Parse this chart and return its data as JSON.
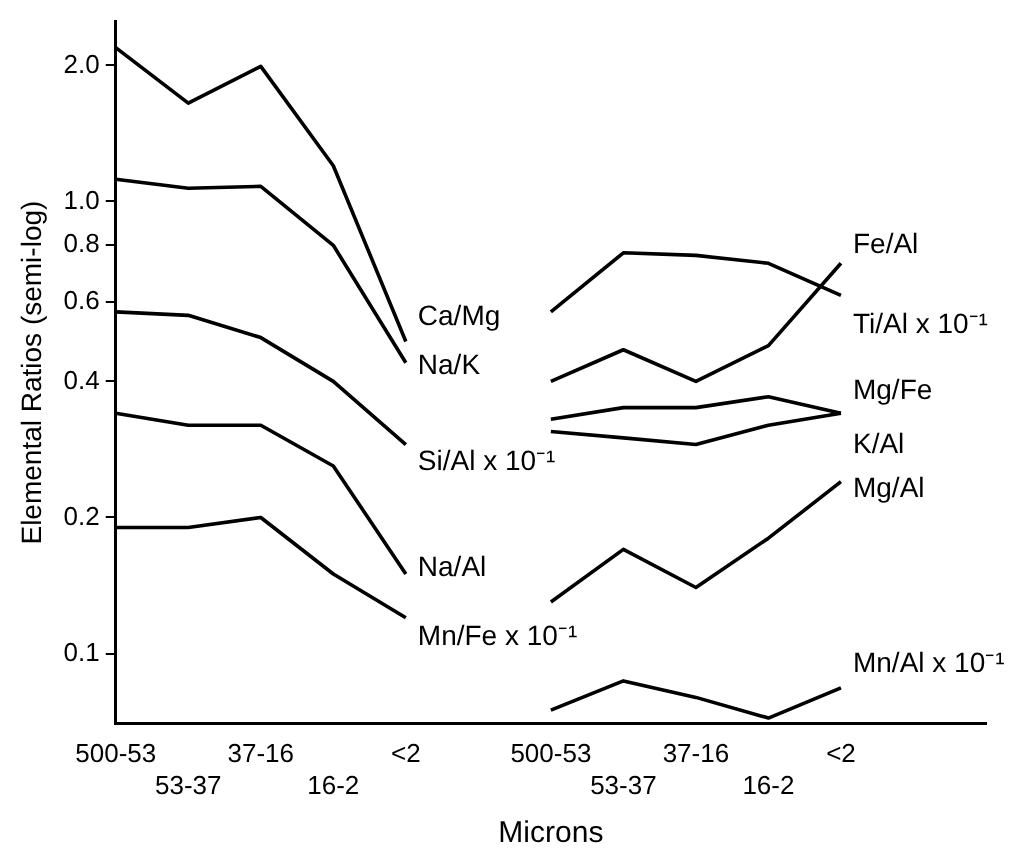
{
  "chart_data": {
    "type": "line",
    "xlabel": "Microns",
    "ylabel": "Elemental Ratios (semi-log)",
    "categories": [
      "500-53",
      "53-37",
      "37-16",
      "16-2",
      "<2",
      null,
      "500-53",
      "53-37",
      "37-16",
      "16-2",
      "<2",
      null,
      null
    ],
    "log": "y",
    "ylim": [
      0.07,
      2.5
    ],
    "yticks": [
      0.1,
      0.2,
      0.4,
      0.6,
      0.8,
      {
        "value": 1,
        "label": "1.0"
      },
      {
        "value": 2,
        "label": "2.0"
      }
    ],
    "grid": false,
    "legend": false,
    "marker": "none",
    "line_style": "solid",
    "series": [
      {
        "name": "Ca/Mg",
        "color": "#000000",
        "values": [
          2.19,
          1.65,
          1.99,
          1.2,
          0.49,
          null,
          null,
          null,
          null,
          null,
          null,
          null,
          null
        ]
      },
      {
        "name": "Na/K",
        "color": "#000000",
        "values": [
          1.12,
          1.07,
          1.08,
          0.8,
          0.44,
          null,
          null,
          null,
          null,
          null,
          null,
          null,
          null
        ]
      },
      {
        "name": "Si/Al x 10⁻¹",
        "color": "#000000",
        "values": [
          0.57,
          0.56,
          0.5,
          0.4,
          0.29,
          null,
          null,
          null,
          null,
          null,
          null,
          null,
          null
        ]
      },
      {
        "name": "Na/Al",
        "color": "#000000",
        "values": [
          0.34,
          0.32,
          0.32,
          0.26,
          0.15,
          null,
          null,
          null,
          null,
          null,
          null,
          null,
          null
        ]
      },
      {
        "name": "Mn/Fe x 10⁻¹",
        "color": "#000000",
        "values": [
          0.19,
          0.19,
          0.2,
          0.15,
          0.12,
          null,
          null,
          null,
          null,
          null,
          null,
          null,
          null
        ]
      },
      {
        "name": "Fe/Al",
        "color": "#000000",
        "values": [
          null,
          null,
          null,
          null,
          null,
          null,
          0.4,
          0.47,
          0.4,
          0.48,
          0.73,
          null,
          null
        ]
      },
      {
        "name": "Ti/Al x 10⁻¹",
        "color": "#000000",
        "values": [
          null,
          null,
          null,
          null,
          null,
          null,
          0.57,
          0.77,
          0.76,
          0.73,
          0.62,
          null,
          null
        ]
      },
      {
        "name": "Mg/Fe",
        "color": "#000000",
        "values": [
          null,
          null,
          null,
          null,
          null,
          null,
          0.33,
          0.35,
          0.35,
          0.37,
          0.34,
          null,
          null
        ]
      },
      {
        "name": "K/Al",
        "color": "#000000",
        "values": [
          null,
          null,
          null,
          null,
          null,
          null,
          0.31,
          0.3,
          0.29,
          0.32,
          0.34,
          null,
          null
        ]
      },
      {
        "name": "Mg/Al",
        "color": "#000000",
        "values": [
          null,
          null,
          null,
          null,
          null,
          null,
          0.13,
          0.17,
          0.14,
          0.18,
          0.24,
          null,
          null
        ]
      },
      {
        "name": "Mn/Al x 10⁻¹",
        "color": "#000000",
        "values": [
          null,
          null,
          null,
          null,
          null,
          null,
          0.075,
          0.087,
          0.08,
          0.072,
          0.084,
          null,
          null
        ]
      }
    ]
  }
}
